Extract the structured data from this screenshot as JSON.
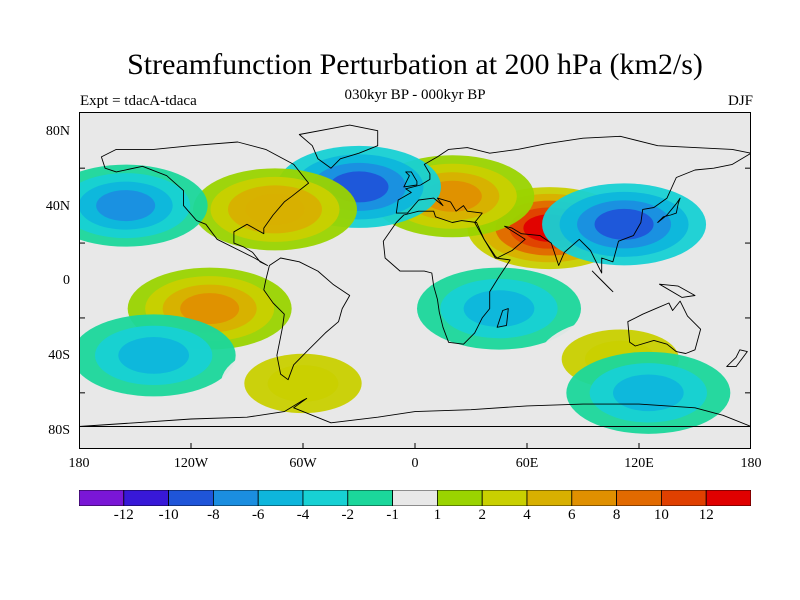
{
  "title": "Streamfunction Perturbation at 200 hPa (km2/s)",
  "subtitle": "030kyr BP - 000kyr BP",
  "left_string": "Expt = tdacA-tdaca",
  "right_string": "DJF",
  "y_ticks": [
    "80N",
    "40N",
    "0",
    "40S",
    "80S"
  ],
  "x_ticks": [
    "180",
    "120W",
    "60W",
    "0",
    "60E",
    "120E",
    "180"
  ],
  "colorbar": {
    "colors": [
      "#7a16d6",
      "#3818d8",
      "#1f55d9",
      "#1b8ee0",
      "#0eb6dc",
      "#17d1d4",
      "#1bd79b",
      "#e8e8e8",
      "#9ad400",
      "#c9d000",
      "#d8b000",
      "#e09000",
      "#e26a00",
      "#e04000",
      "#e00000"
    ],
    "labels": [
      "-12",
      "-10",
      "-8",
      "-6",
      "-4",
      "-2",
      "-1",
      "1",
      "2",
      "4",
      "6",
      "8",
      "10",
      "12"
    ]
  },
  "chart_data": {
    "type": "contour_map",
    "variable": "streamfunction perturbation",
    "level": "200 hPa",
    "units": "km2/s",
    "season": "DJF",
    "contour_levels": [
      -12,
      -10,
      -8,
      -6,
      -4,
      -2,
      -1,
      1,
      2,
      4,
      6,
      8,
      10,
      12
    ],
    "lon_range": [
      -180,
      180
    ],
    "lat_range": [
      -90,
      90
    ],
    "features": [
      {
        "lon": 72,
        "lat": 28,
        "value": 13,
        "sign": "positive",
        "region": "South Asia / Tibet"
      },
      {
        "lon": 20,
        "lat": 45,
        "value": 8,
        "sign": "positive",
        "region": "Europe / Mediterranean"
      },
      {
        "lon": 112,
        "lat": 30,
        "value": -8,
        "sign": "negative",
        "region": "East Asia"
      },
      {
        "lon": -30,
        "lat": 50,
        "value": -8,
        "sign": "negative",
        "region": "North Atlantic"
      },
      {
        "lon": -75,
        "lat": 38,
        "value": 6,
        "sign": "positive",
        "region": "Eastern North America"
      },
      {
        "lon": -110,
        "lat": -15,
        "value": 8,
        "sign": "positive",
        "region": "South-East Pacific"
      },
      {
        "lon": -155,
        "lat": 40,
        "value": -6,
        "sign": "negative",
        "region": "North Pacific"
      },
      {
        "lon": -140,
        "lat": -40,
        "value": -4,
        "sign": "negative",
        "region": "South Pacific"
      },
      {
        "lon": 45,
        "lat": -15,
        "value": -4,
        "sign": "negative",
        "region": "Indian Ocean"
      },
      {
        "lon": 110,
        "lat": -42,
        "value": 4,
        "sign": "positive",
        "region": "South Indian Ocean"
      },
      {
        "lon": 125,
        "lat": -60,
        "value": -4,
        "sign": "negative",
        "region": "Southern Ocean"
      },
      {
        "lon": -60,
        "lat": -55,
        "value": 4,
        "sign": "positive",
        "region": "South Atlantic"
      }
    ]
  }
}
